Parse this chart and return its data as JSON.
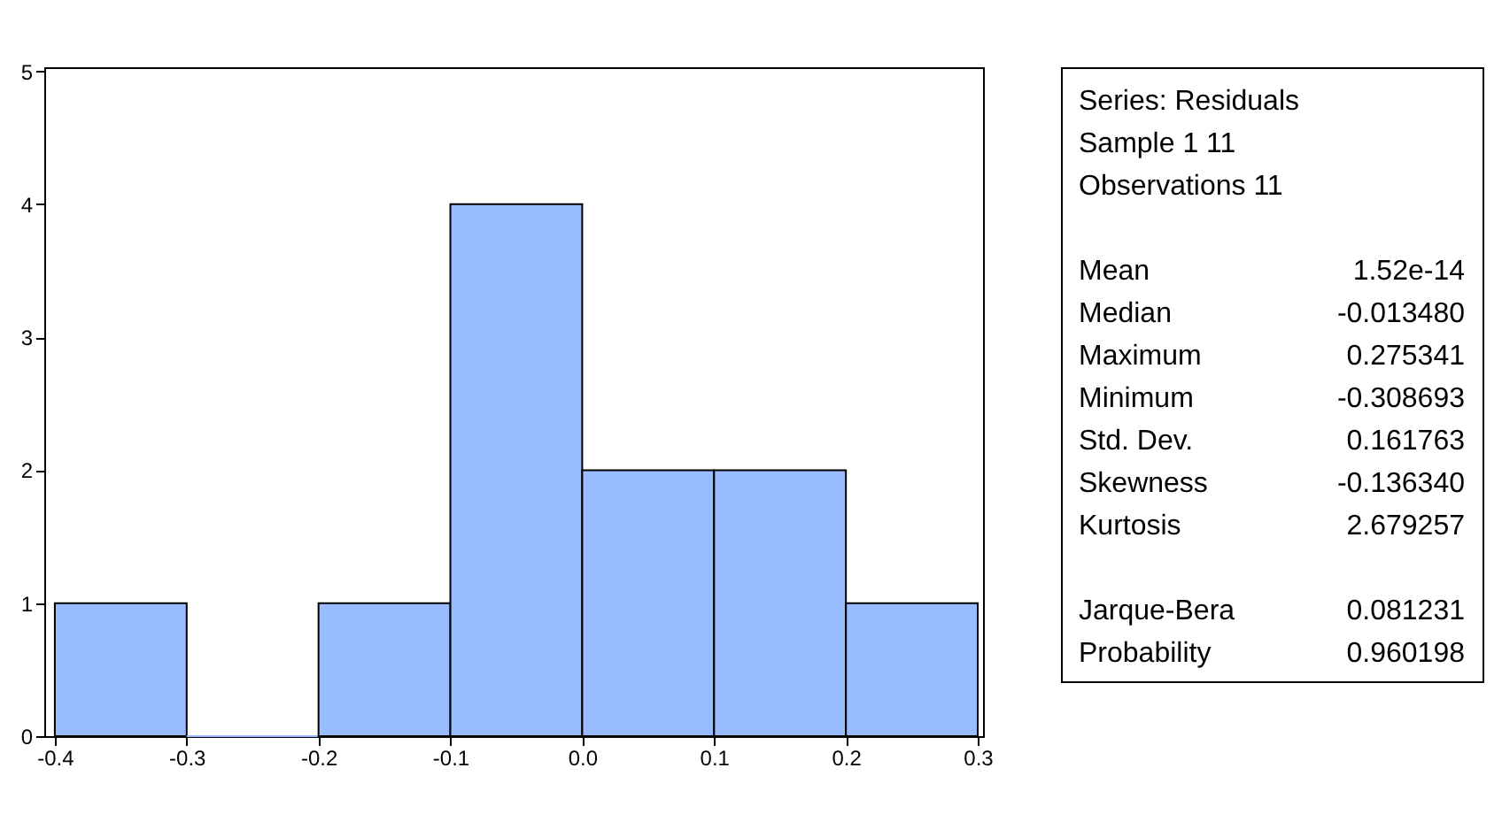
{
  "chart_data": [
    {
      "type": "histogram",
      "bins": [
        -0.4,
        -0.3,
        -0.2,
        -0.1,
        0,
        0.1,
        0.2,
        0.3
      ],
      "values": [
        1,
        0,
        1,
        4,
        2,
        2,
        1
      ],
      "color": "#99bbff",
      "xlim": [
        -0.408,
        0.304
      ],
      "xticks": [
        -0.4,
        -0.3,
        -0.2,
        -0.1,
        {
          "value": 0,
          "label": "0.0"
        },
        0.1,
        0.2,
        0.3
      ],
      "ylim": [
        0,
        5.03
      ],
      "yticks": [
        0,
        1,
        2,
        3,
        4,
        5
      ],
      "grid": false
    },
    {
      "type": "other",
      "annotations": [
        "Series: Residuals",
        "Sample 1 11",
        "Observations 11"
      ],
      "categories": [
        "Mean",
        "Median",
        "Maximum",
        "Minimum",
        "Std. Dev.",
        "Skewness",
        "Kurtosis",
        "Jarque-Bera",
        "Probability"
      ],
      "value_labels": [
        "1.52e-14",
        "-0.013480",
        "0.275341",
        "-0.308693",
        "0.161763",
        "-0.136340",
        "2.679257",
        "0.081231",
        "0.960198"
      ]
    }
  ]
}
